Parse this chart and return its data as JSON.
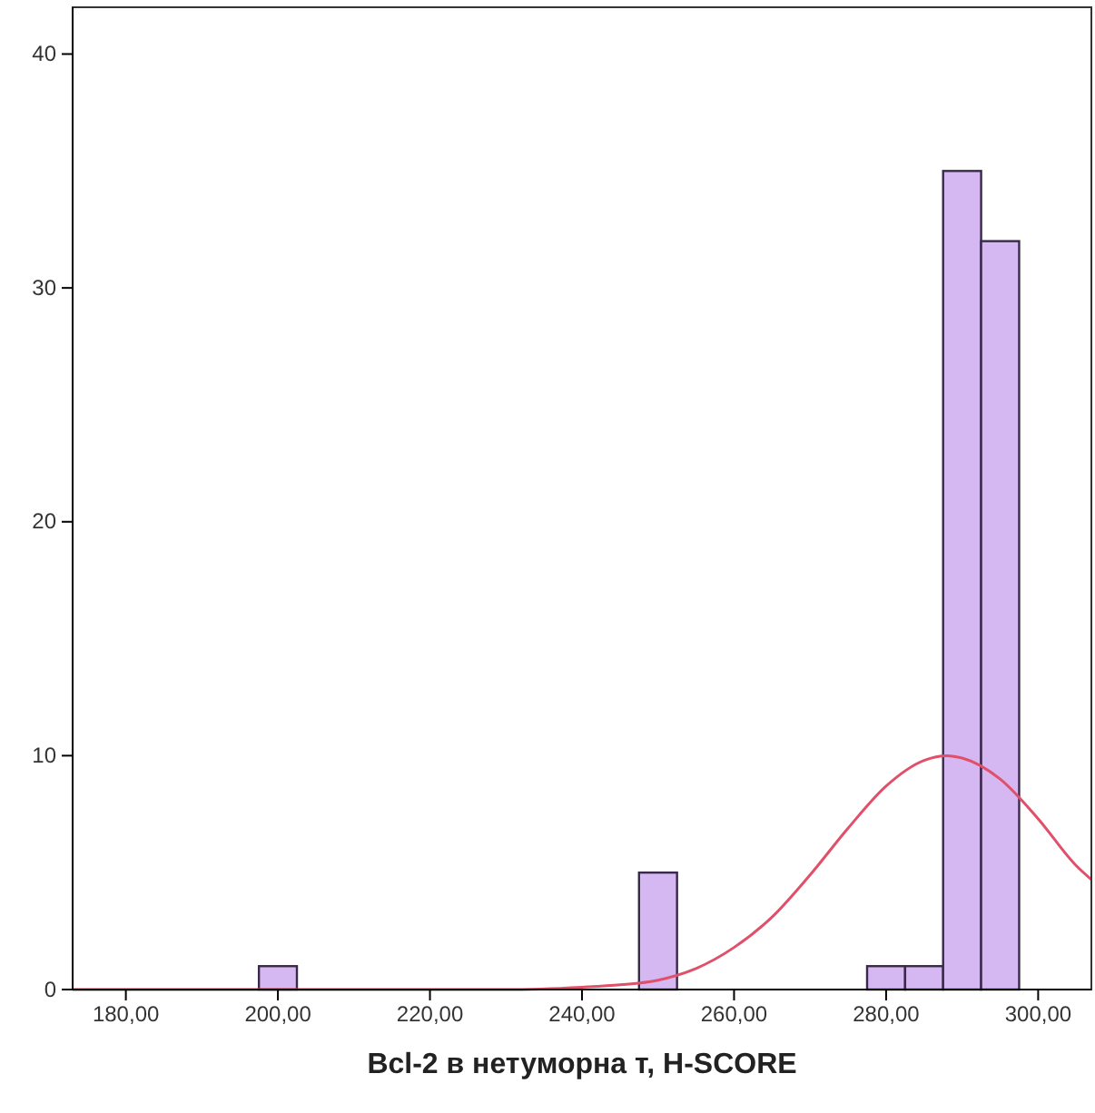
{
  "chart_data": {
    "type": "histogram",
    "xlabel": "Bcl-2 в нетуморна т, H-SCORE",
    "bins": [
      197.5,
      202.5,
      207.5,
      212.5,
      217.5,
      222.5,
      227.5,
      232.5,
      237.5,
      242.5,
      247.5,
      252.5,
      257.5,
      262.5,
      267.5,
      272.5,
      277.5,
      282.5,
      287.5,
      292.5,
      297.5
    ],
    "values": [
      1,
      0,
      0,
      0,
      0,
      0,
      0,
      0,
      0,
      0,
      5,
      0,
      0,
      0,
      0,
      0,
      1,
      1,
      35,
      32
    ],
    "color": "#d5b8f2",
    "series": [
      {
        "type": "line",
        "color": "#e0506a",
        "x": [
          173,
          200,
          230,
          240,
          245,
          250,
          255,
          260,
          265,
          270,
          275,
          280,
          285,
          288,
          290,
          295,
          300,
          305,
          307
        ],
        "values": [
          0,
          0,
          0,
          0.1,
          0.2,
          0.4,
          0.9,
          1.8,
          3.1,
          4.9,
          6.9,
          8.7,
          9.8,
          10,
          9.9,
          9,
          7.3,
          5.3,
          4.7
        ]
      }
    ],
    "xlim": [
      173,
      307
    ],
    "ylim": [
      0,
      42
    ],
    "xticks": [
      {
        "value": 180,
        "label": "180,00"
      },
      {
        "value": 200,
        "label": "200,00"
      },
      {
        "value": 220,
        "label": "220,00"
      },
      {
        "value": 240,
        "label": "240,00"
      },
      {
        "value": 260,
        "label": "260,00"
      },
      {
        "value": 280,
        "label": "280,00"
      },
      {
        "value": 300,
        "label": "300,00"
      }
    ],
    "yticks": [
      0,
      10,
      20,
      30,
      40
    ],
    "grid": false
  }
}
